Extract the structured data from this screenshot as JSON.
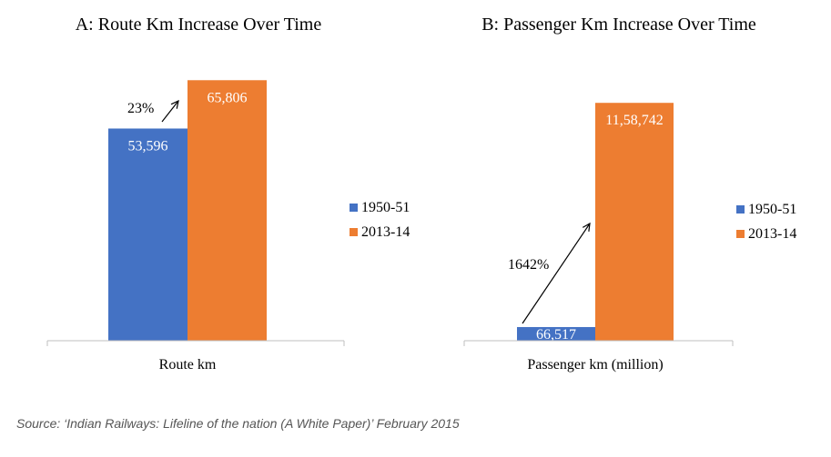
{
  "source": "Source: ‘Indian Railways: Lifeline of the nation (A White Paper)’ February 2015",
  "colors": {
    "series_1950": "#4472C4",
    "series_2013": "#ED7D31"
  },
  "chart_data": [
    {
      "type": "bar",
      "title": "A: Route Km Increase Over Time",
      "categories": [
        "Route km"
      ],
      "series": [
        {
          "name": "1950-51",
          "values": [
            53596
          ],
          "labels": [
            "53,596"
          ]
        },
        {
          "name": "2013-14",
          "values": [
            65806
          ],
          "labels": [
            "65,806"
          ]
        }
      ],
      "ylim": [
        0,
        70000
      ],
      "grid": false,
      "legend": "right",
      "annotation": {
        "text": "23%"
      }
    },
    {
      "type": "bar",
      "title": "B: Passenger Km Increase Over Time",
      "categories": [
        "Passenger km (million)"
      ],
      "series": [
        {
          "name": "1950-51",
          "values": [
            66517
          ],
          "labels": [
            "66,517"
          ]
        },
        {
          "name": "2013-14",
          "values": [
            1158742
          ],
          "labels": [
            "11,58,742"
          ]
        }
      ],
      "ylim": [
        0,
        1350000
      ],
      "grid": false,
      "legend": "right",
      "annotation": {
        "text": "1642%"
      }
    }
  ]
}
